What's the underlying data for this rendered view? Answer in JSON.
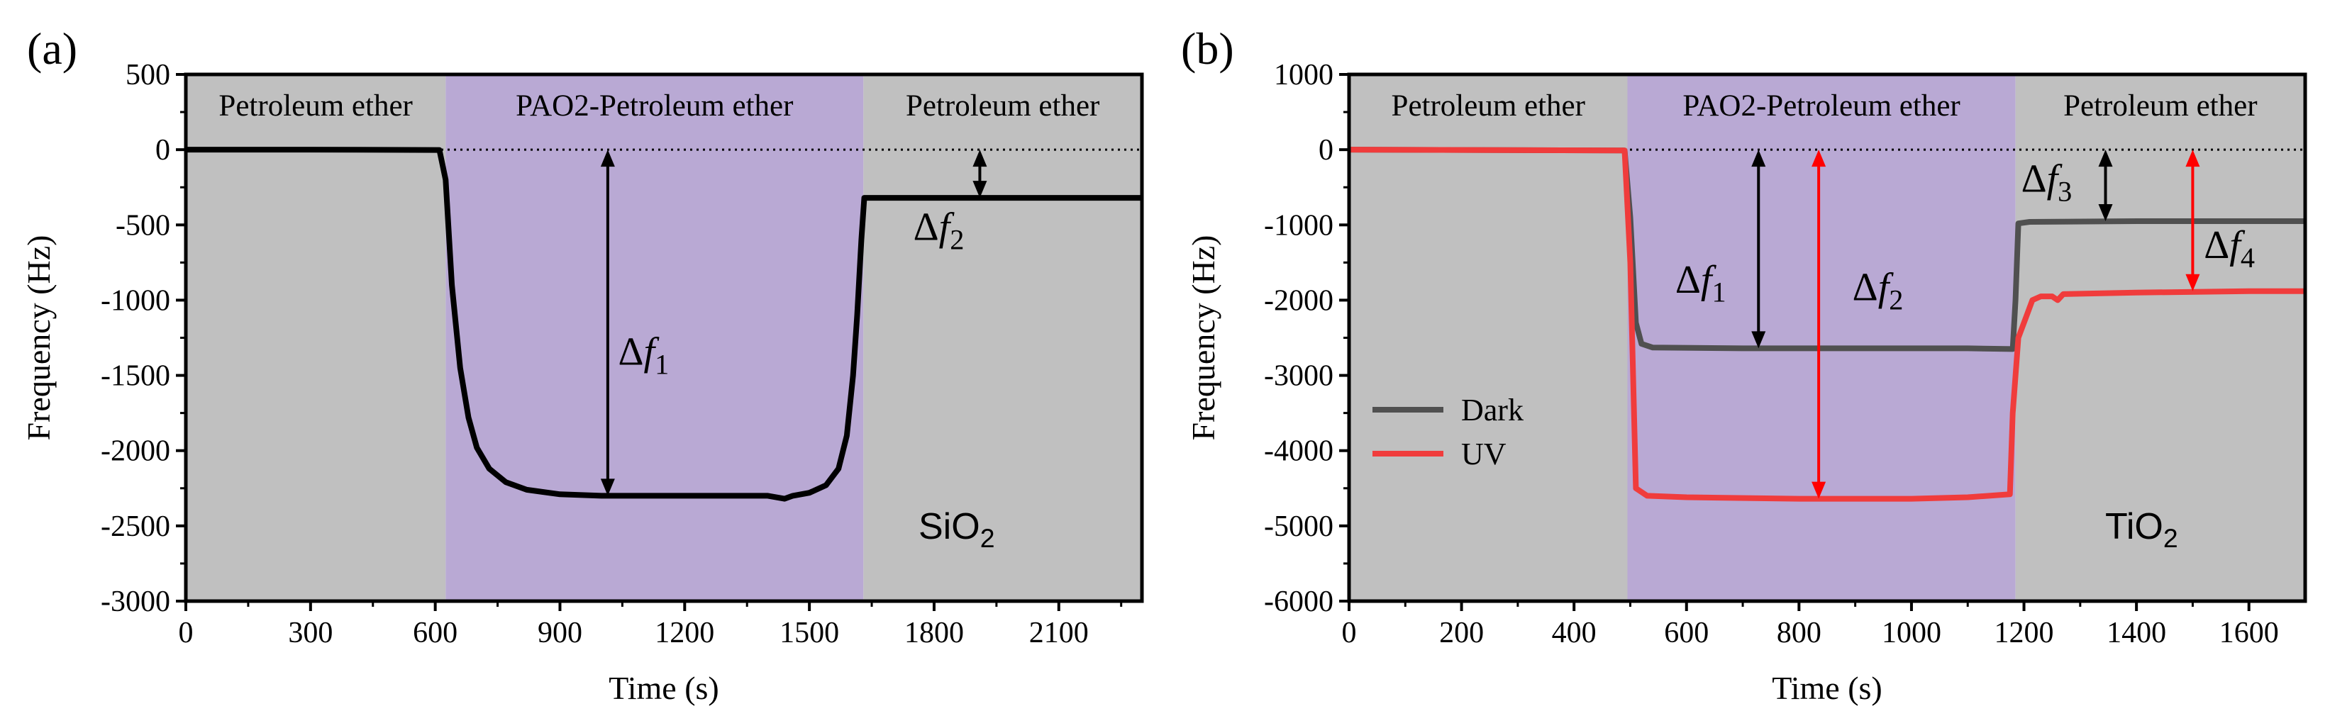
{
  "chart_data": [
    {
      "panel_label": "(a)",
      "type": "line",
      "xlabel": "Time (s)",
      "ylabel": "Frequency (Hz)",
      "xlim": [
        0,
        2300
      ],
      "ylim": [
        -3000,
        500
      ],
      "xticks": [
        0,
        300,
        600,
        900,
        1200,
        1500,
        1800,
        2100
      ],
      "yticks": [
        -3000,
        -2500,
        -2000,
        -1500,
        -1000,
        -500,
        0,
        500
      ],
      "regions": [
        {
          "label": "Petroleum ether",
          "x0": 0,
          "x1": 625,
          "color": "#c0c0c0"
        },
        {
          "label": "PAO2-Petroleum ether",
          "x0": 625,
          "x1": 1630,
          "color": "#b9a9d4"
        },
        {
          "label": "Petroleum ether",
          "x0": 1630,
          "x1": 2300,
          "color": "#c0c0c0"
        }
      ],
      "baseline": 0,
      "series": [
        {
          "name": "SiO2",
          "color": "#000000",
          "x": [
            0,
            300,
            610,
            625,
            640,
            660,
            680,
            700,
            730,
            770,
            820,
            900,
            1000,
            1200,
            1400,
            1440,
            1460,
            1500,
            1540,
            1570,
            1590,
            1605,
            1615,
            1625,
            1632,
            1700,
            1900,
            2100,
            2300
          ],
          "y": [
            0,
            0,
            -2,
            -200,
            -900,
            -1450,
            -1780,
            -1980,
            -2120,
            -2210,
            -2260,
            -2290,
            -2300,
            -2300,
            -2300,
            -2320,
            -2300,
            -2280,
            -2230,
            -2120,
            -1900,
            -1500,
            -1100,
            -600,
            -320,
            -320,
            -320,
            -320,
            -320
          ]
        }
      ],
      "annotations": [
        {
          "text": "Δf",
          "sub": "1",
          "x": 1040,
          "y": -1430,
          "color": "#000000"
        },
        {
          "text": "Δf",
          "sub": "2",
          "x": 1750,
          "y": -600,
          "color": "#000000"
        }
      ],
      "arrows": [
        {
          "x": 1015,
          "y0": 0,
          "y1": -2300,
          "color": "#000000"
        },
        {
          "x": 1910,
          "y0": 0,
          "y1": -320,
          "color": "#000000"
        }
      ],
      "material": {
        "base": "SiO",
        "sub": "2"
      }
    },
    {
      "panel_label": "(b)",
      "type": "line",
      "xlabel": "Time (s)",
      "ylabel": "Frequency (Hz)",
      "xlim": [
        0,
        1700
      ],
      "ylim": [
        -6000,
        1000
      ],
      "xticks": [
        0,
        200,
        400,
        600,
        800,
        1000,
        1200,
        1400,
        1600
      ],
      "yticks": [
        -6000,
        -5000,
        -4000,
        -3000,
        -2000,
        -1000,
        0,
        1000
      ],
      "regions": [
        {
          "label": "Petroleum ether",
          "x0": 0,
          "x1": 495,
          "color": "#c0c0c0"
        },
        {
          "label": "PAO2-Petroleum ether",
          "x0": 495,
          "x1": 1185,
          "color": "#b9a9d4"
        },
        {
          "label": "Petroleum ether",
          "x0": 1185,
          "x1": 1700,
          "color": "#c0c0c0"
        }
      ],
      "baseline": 0,
      "series": [
        {
          "name": "Dark",
          "color": "#505050",
          "x": [
            0,
            490,
            500,
            510,
            520,
            540,
            700,
            900,
            1100,
            1180,
            1185,
            1190,
            1210,
            1400,
            1600,
            1700
          ],
          "y": [
            0,
            -10,
            -900,
            -2300,
            -2580,
            -2630,
            -2640,
            -2640,
            -2640,
            -2650,
            -2000,
            -980,
            -960,
            -950,
            -950,
            -950
          ]
        },
        {
          "name": "UV",
          "color": "#f03c3c",
          "x": [
            0,
            490,
            500,
            510,
            530,
            600,
            800,
            1000,
            1100,
            1175,
            1180,
            1190,
            1205,
            1215,
            1230,
            1250,
            1260,
            1270,
            1400,
            1600,
            1700
          ],
          "y": [
            0,
            -10,
            -1500,
            -4500,
            -4600,
            -4620,
            -4640,
            -4640,
            -4620,
            -4580,
            -3500,
            -2500,
            -2200,
            -2000,
            -1950,
            -1950,
            -2000,
            -1920,
            -1900,
            -1880,
            -1880
          ]
        }
      ],
      "annotations": [
        {
          "text": "Δf",
          "sub": "1",
          "x": 580,
          "y": -1900,
          "color": "#000000"
        },
        {
          "text": "Δf",
          "sub": "2",
          "x": 895,
          "y": -2000,
          "color": "#ff0000"
        },
        {
          "text": "Δf",
          "sub": "3",
          "x": 1195,
          "y": -560,
          "color": "#000000"
        },
        {
          "text": "Δf",
          "sub": "4",
          "x": 1520,
          "y": -1440,
          "color": "#ff0000"
        }
      ],
      "arrows": [
        {
          "x": 728,
          "y0": 0,
          "y1": -2640,
          "color": "#000000"
        },
        {
          "x": 835,
          "y0": 0,
          "y1": -4640,
          "color": "#ff0000"
        },
        {
          "x": 1345,
          "y0": 0,
          "y1": -950,
          "color": "#000000"
        },
        {
          "x": 1500,
          "y0": 0,
          "y1": -1880,
          "color": "#ff0000"
        }
      ],
      "legend": [
        {
          "name": "Dark",
          "color": "#505050"
        },
        {
          "name": "UV",
          "color": "#f03c3c"
        }
      ],
      "material": {
        "base": "TiO",
        "sub": "2"
      }
    }
  ]
}
